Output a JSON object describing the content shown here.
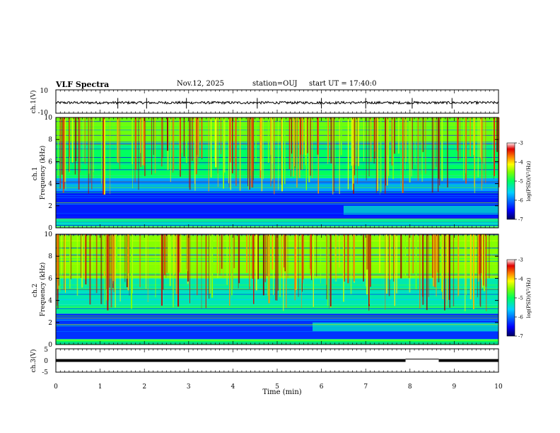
{
  "header": {
    "title": "VLF Spectra",
    "date": "Nov.12, 2025",
    "station": "station=OUJ",
    "start": "start UT = 17:40:0"
  },
  "chart_data": [
    {
      "id": "ch1-waveform",
      "type": "line",
      "ylabel": "ch.1(V)",
      "ylim": [
        -10,
        10
      ],
      "yticklabels": [
        "-10",
        "10"
      ],
      "baseline": -1,
      "spikes_min": [
        1.4,
        2.05,
        2.95,
        4.55,
        6.0,
        7.0,
        8.05,
        8.95
      ]
    },
    {
      "id": "ch1-spectrogram",
      "type": "heatmap",
      "ylabel": "ch.1\nFrequency (kHz)",
      "ylim": [
        0,
        10
      ],
      "yticks": [
        0,
        2,
        4,
        6,
        8,
        10
      ],
      "colorbar": {
        "label": "log(PSD)(V²/Hz)",
        "range": [
          -7,
          -3
        ],
        "ticks": [
          -7,
          -6,
          -5,
          -4,
          -3
        ]
      },
      "bands": [
        {
          "from_khz": 0.0,
          "to_khz": 0.8,
          "level": -5.3
        },
        {
          "from_khz": 0.8,
          "to_khz": 3.3,
          "level": -6.4
        },
        {
          "from_khz": 3.3,
          "to_khz": 4.5,
          "level": -5.8
        },
        {
          "from_khz": 4.5,
          "to_khz": 7.5,
          "level": -5.0
        },
        {
          "from_khz": 7.5,
          "to_khz": 10.0,
          "level": -4.6
        }
      ],
      "change_at_min": 6.5
    },
    {
      "id": "ch2-spectrogram",
      "type": "heatmap",
      "ylabel": "ch.2\nFrequency (kHz)",
      "ylim": [
        0,
        10
      ],
      "yticks": [
        0,
        2,
        4,
        6,
        8,
        10
      ],
      "colorbar": {
        "label": "log(PSD)(V²/Hz)",
        "range": [
          -7,
          -3
        ],
        "ticks": [
          -7,
          -6,
          -5,
          -4,
          -3
        ]
      },
      "bands": [
        {
          "from_khz": 0.0,
          "to_khz": 0.5,
          "level": -5.0
        },
        {
          "from_khz": 0.5,
          "to_khz": 2.8,
          "level": -6.3
        },
        {
          "from_khz": 2.8,
          "to_khz": 3.6,
          "level": -5.2
        },
        {
          "from_khz": 3.6,
          "to_khz": 6.0,
          "level": -5.3
        },
        {
          "from_khz": 6.0,
          "to_khz": 10.0,
          "level": -4.5
        }
      ],
      "change_at_min": 5.8
    },
    {
      "id": "ch3-waveform",
      "type": "line",
      "ylabel": "ch.3(V)",
      "ylim": [
        -5,
        5
      ],
      "yticklabels": [
        "-5",
        "0",
        "5"
      ],
      "level": 0,
      "gap_min": [
        7.9,
        8.65
      ]
    }
  ],
  "x_axis": {
    "label": "Time (min)",
    "range": [
      0,
      10
    ],
    "ticks": [
      "0",
      "1",
      "2",
      "3",
      "4",
      "5",
      "6",
      "7",
      "8",
      "9",
      "10"
    ]
  },
  "colors": {
    "line": "#000000",
    "colormap": [
      "#000080",
      "#0000ff",
      "#00c0ff",
      "#00ff80",
      "#80ff00",
      "#ffff00",
      "#ff8000",
      "#d00000",
      "#800000"
    ]
  }
}
